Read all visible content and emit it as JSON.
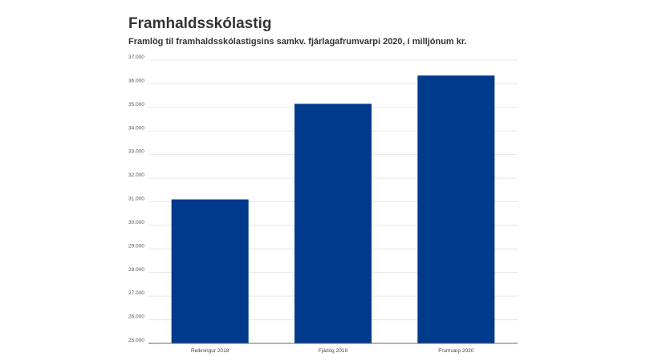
{
  "title": "Framhaldsskólastig",
  "subtitle": "Framlög til framhaldsskólastigsins samkv. fjárlagafrumvarpi 2020, í milljónum kr.",
  "chart_data": {
    "type": "bar",
    "title": "Framhaldsskólastig",
    "subtitle": "Framlög til framhaldsskólastigsins samkv. fjárlagafrumvarpi 2020, í milljónum kr.",
    "categories": [
      "Reikningur 2018",
      "Fjárlög 2019",
      "Frumvarp 2020"
    ],
    "values": [
      31100,
      35150,
      36350
    ],
    "ylim": [
      25000,
      37000
    ],
    "yticks": [
      25000,
      26000,
      27000,
      28000,
      29000,
      30000,
      31000,
      32000,
      33000,
      34000,
      35000,
      36000,
      37000
    ],
    "ytick_labels": [
      "25.000",
      "26.000",
      "27.000",
      "28.000",
      "29.000",
      "30.000",
      "31.000",
      "32.000",
      "33.000",
      "34.000",
      "35.000",
      "36.000",
      "37.000"
    ],
    "grid": true,
    "bar_color": "#003a8c",
    "xlabel": "",
    "ylabel": ""
  }
}
